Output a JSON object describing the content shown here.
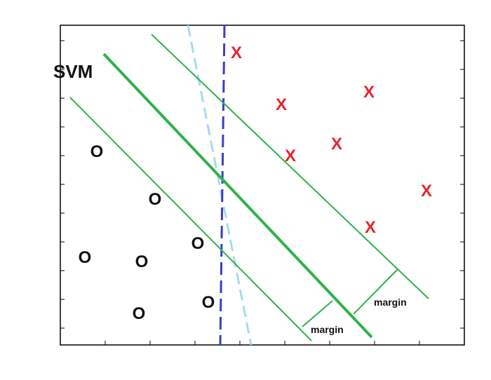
{
  "title": "SVM",
  "o_marker": "O",
  "x_marker": "X",
  "margin_label_left": "margin",
  "margin_label_right": "margin",
  "colors": {
    "svm_line": "#2fb24a",
    "dashed_dark": "#3a3fc0",
    "dashed_light": "#a6dce8",
    "x_marker": "#e3262b",
    "o_marker": "#111111",
    "frame": "#000000"
  },
  "icons": {
    "o_point": "letter-o-glyph",
    "x_point": "letter-x-glyph"
  }
}
